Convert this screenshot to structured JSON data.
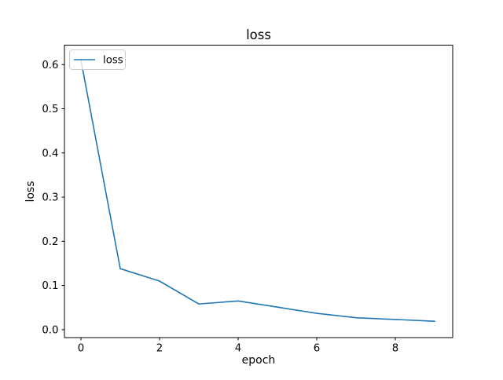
{
  "chart_data": {
    "type": "line",
    "title": "loss",
    "xlabel": "epoch",
    "ylabel": "loss",
    "x": [
      0,
      1,
      2,
      3,
      4,
      5,
      6,
      7,
      8,
      9
    ],
    "series": [
      {
        "name": "loss",
        "color": "#1f77b4",
        "values": [
          0.61,
          0.138,
          0.11,
          0.058,
          0.065,
          0.051,
          0.037,
          0.027,
          0.023,
          0.019
        ]
      }
    ],
    "x_tick_labels": [
      "0",
      "2",
      "4",
      "6",
      "8"
    ],
    "x_tick_values": [
      0,
      2,
      4,
      6,
      8
    ],
    "y_tick_labels": [
      "0.0",
      "0.1",
      "0.2",
      "0.3",
      "0.4",
      "0.5",
      "0.6"
    ],
    "y_tick_values": [
      0.0,
      0.1,
      0.2,
      0.3,
      0.4,
      0.5,
      0.6
    ],
    "xlim": [
      -0.42,
      9.46
    ],
    "ylim": [
      -0.018,
      0.644
    ],
    "grid": false,
    "legend_position": "upper left",
    "legend_entries": [
      "loss"
    ]
  },
  "colors": {
    "line": "#1f77b4",
    "axis": "#000000",
    "text": "#000000",
    "legend_border": "#cccccc",
    "legend_fill": "rgba(255,255,255,0.8)",
    "background": "#ffffff"
  }
}
